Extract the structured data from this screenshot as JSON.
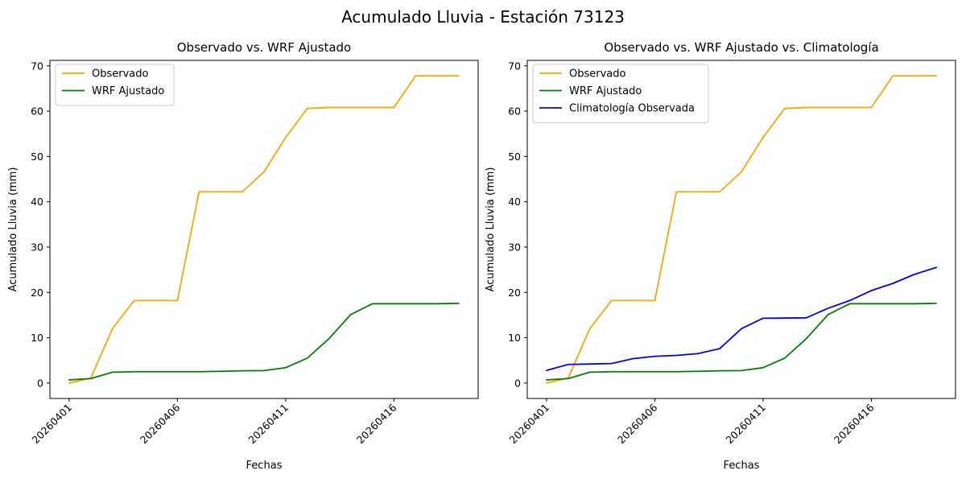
{
  "figure_title": "Acumulado Lluvia - Estación 73123",
  "chart_data": [
    {
      "type": "line",
      "title": "Observado vs. WRF Ajustado",
      "xlabel": "Fechas",
      "ylabel": "Acumulado Lluvia (mm)",
      "x": [
        "20260401",
        "20260402",
        "20260403",
        "20260404",
        "20260405",
        "20260406",
        "20260407",
        "20260408",
        "20260409",
        "20260410",
        "20260411",
        "20260412",
        "20260413",
        "20260414",
        "20260415",
        "20260416",
        "20260417",
        "20260418",
        "20260419"
      ],
      "xticks": [
        "20260401",
        "20260406",
        "20260411",
        "20260416"
      ],
      "ylim": [
        -3.4,
        71.2
      ],
      "yticks": [
        0,
        10,
        20,
        30,
        40,
        50,
        60,
        70
      ],
      "legend": "top-left",
      "grid": false,
      "series": [
        {
          "name": "Observado",
          "color": "#ffa500",
          "values": [
            0.0,
            1.1,
            12.0,
            18.2,
            18.2,
            18.2,
            42.2,
            42.2,
            42.2,
            46.6,
            54.2,
            60.6,
            60.8,
            60.8,
            60.8,
            60.8,
            67.8,
            67.8,
            67.8
          ]
        },
        {
          "name": "WRF Ajustado",
          "color": "#008000",
          "values": [
            0.7,
            1.0,
            2.4,
            2.5,
            2.5,
            2.5,
            2.5,
            2.6,
            2.7,
            2.75,
            3.4,
            5.5,
            9.8,
            15.1,
            17.5,
            17.5,
            17.5,
            17.5,
            17.6
          ]
        }
      ]
    },
    {
      "type": "line",
      "title": "Observado vs. WRF Ajustado vs. Climatología",
      "xlabel": "Fechas",
      "ylabel": "Acumulado Lluvia (mm)",
      "x": [
        "20260401",
        "20260402",
        "20260403",
        "20260404",
        "20260405",
        "20260406",
        "20260407",
        "20260408",
        "20260409",
        "20260410",
        "20260411",
        "20260412",
        "20260413",
        "20260414",
        "20260415",
        "20260416",
        "20260417",
        "20260418",
        "20260419"
      ],
      "xticks": [
        "20260401",
        "20260406",
        "20260411",
        "20260416"
      ],
      "ylim": [
        -3.4,
        71.2
      ],
      "yticks": [
        0,
        10,
        20,
        30,
        40,
        50,
        60,
        70
      ],
      "legend": "top-left",
      "grid": false,
      "series": [
        {
          "name": "Observado",
          "color": "#ffa500",
          "values": [
            0.0,
            1.1,
            12.0,
            18.2,
            18.2,
            18.2,
            42.2,
            42.2,
            42.2,
            46.6,
            54.2,
            60.6,
            60.8,
            60.8,
            60.8,
            60.8,
            67.8,
            67.8,
            67.8
          ]
        },
        {
          "name": "WRF Ajustado",
          "color": "#008000",
          "values": [
            0.7,
            1.0,
            2.4,
            2.5,
            2.5,
            2.5,
            2.5,
            2.6,
            2.7,
            2.75,
            3.4,
            5.5,
            9.8,
            15.1,
            17.5,
            17.5,
            17.5,
            17.5,
            17.6
          ]
        },
        {
          "name": "Climatología Observada",
          "color": "#0000ff",
          "values": [
            2.8,
            4.1,
            4.2,
            4.3,
            5.4,
            5.9,
            6.1,
            6.5,
            7.6,
            12.0,
            14.3,
            14.35,
            14.4,
            16.5,
            18.2,
            20.4,
            22.0,
            24.0,
            25.5
          ]
        }
      ]
    }
  ]
}
